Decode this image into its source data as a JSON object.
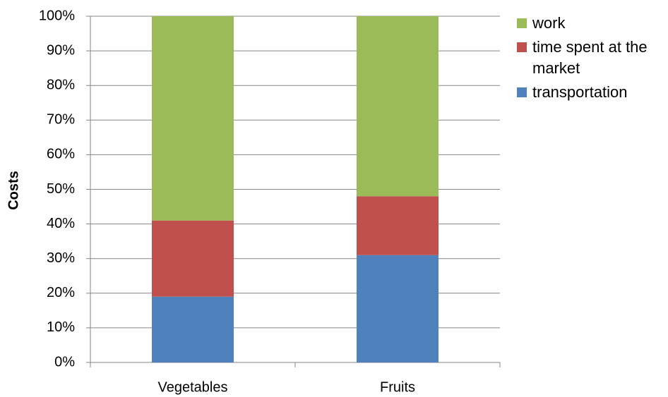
{
  "chart_data": {
    "type": "stacked_bar",
    "ylabel": "Costs",
    "categories": [
      "Vegetables",
      "Fruits"
    ],
    "series": [
      {
        "name": "transportation",
        "color": "#4f81bd",
        "values": [
          19,
          31
        ]
      },
      {
        "name": "time spent at the market",
        "color": "#c0504d",
        "values": [
          22,
          17
        ]
      },
      {
        "name": "work",
        "color": "#9bbb59",
        "values": [
          59,
          52
        ]
      }
    ],
    "ylim": [
      0,
      100
    ],
    "yticks": [
      {
        "value": 0,
        "label": "0%"
      },
      {
        "value": 10,
        "label": "10%"
      },
      {
        "value": 20,
        "label": "20%"
      },
      {
        "value": 30,
        "label": "30%"
      },
      {
        "value": 40,
        "label": "40%"
      },
      {
        "value": 50,
        "label": "50%"
      },
      {
        "value": 60,
        "label": "60%"
      },
      {
        "value": 70,
        "label": "70%"
      },
      {
        "value": 80,
        "label": "80%"
      },
      {
        "value": 90,
        "label": "90%"
      },
      {
        "value": 100,
        "label": "100%"
      }
    ],
    "grid": true,
    "legend": "right"
  }
}
